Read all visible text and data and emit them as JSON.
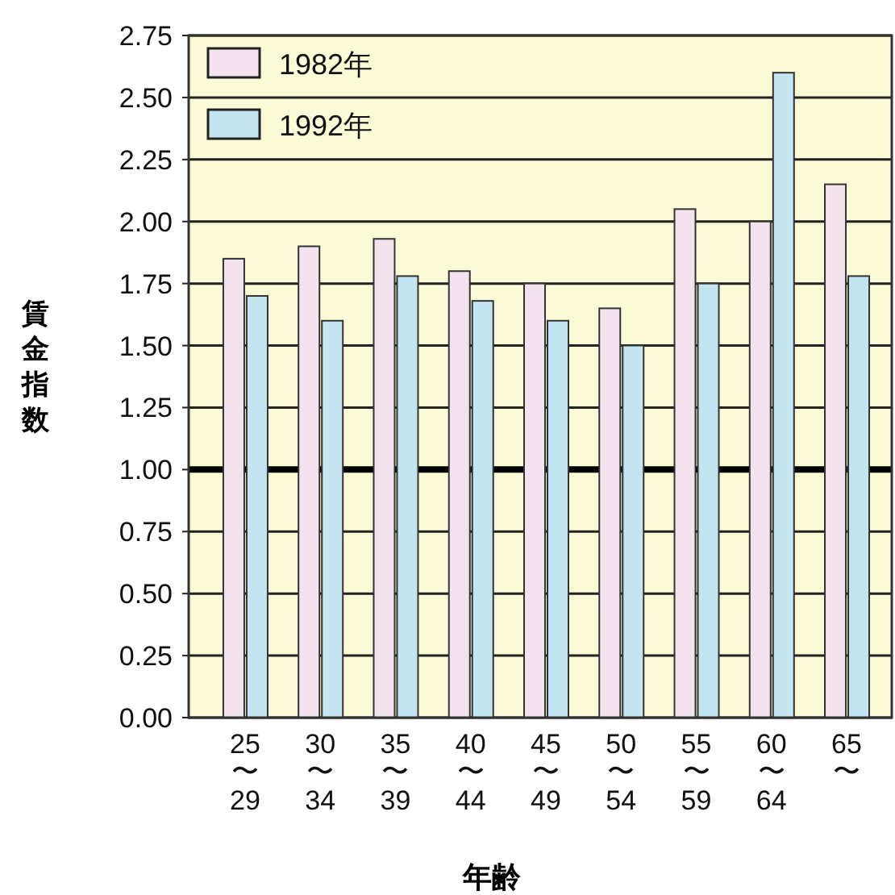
{
  "chart_data": {
    "type": "bar",
    "ylabel": "賃金指数",
    "xlabel": "年齢",
    "categories": [
      "25〜29",
      "30〜34",
      "35〜39",
      "40〜44",
      "45〜49",
      "50〜54",
      "55〜59",
      "60〜64",
      "65〜"
    ],
    "series": [
      {
        "name": "1982年",
        "color": "#f3e3ee",
        "values": [
          1.85,
          1.9,
          1.93,
          1.8,
          1.75,
          1.65,
          2.05,
          2.0,
          2.15
        ]
      },
      {
        "name": "1992年",
        "color": "#c3e5f1",
        "values": [
          1.7,
          1.6,
          1.78,
          1.68,
          1.6,
          1.5,
          1.75,
          2.6,
          1.78
        ]
      }
    ],
    "ylim": [
      0,
      2.75
    ],
    "yticks": [
      {
        "value": 0,
        "label": "0.00"
      },
      0.25,
      {
        "value": 0.5,
        "label": "0.50"
      },
      0.75,
      {
        "value": 1,
        "label": "1.00"
      },
      1.25,
      {
        "value": 1.5,
        "label": "1.50"
      },
      1.75,
      {
        "value": 2,
        "label": "2.00"
      },
      2.25,
      {
        "value": 2.5,
        "label": "2.50"
      },
      2.75
    ],
    "grid": "y",
    "legend": "top left",
    "ref_lines": [
      {
        "axis": "y",
        "value": 1,
        "color": "#000000"
      }
    ]
  }
}
